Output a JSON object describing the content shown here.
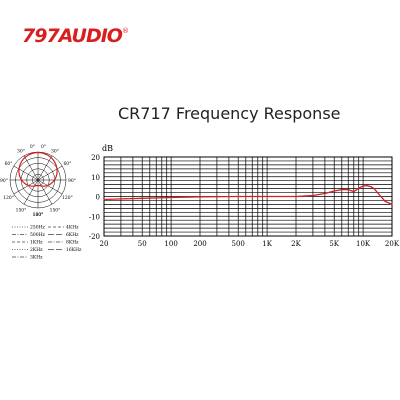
{
  "brand": {
    "name": "797AUDIO",
    "registered_mark": "®",
    "color": "#d81e1e"
  },
  "page_title": "CR717 Frequency Response",
  "polar_pattern": {
    "angle_labels": [
      "0°",
      "0°",
      "30°",
      "30°",
      "60°",
      "60°",
      "90°",
      "90°",
      "120°",
      "120°",
      "150°",
      "150°",
      "180°",
      "180°"
    ],
    "legend": [
      {
        "label": "250Hz",
        "style": "dotted"
      },
      {
        "label": "4KHz",
        "style": "dashed"
      },
      {
        "label": "500Hz",
        "style": "dash-dot"
      },
      {
        "label": "6KHz",
        "style": "long-dash"
      },
      {
        "label": "1KHz",
        "style": "dashed"
      },
      {
        "label": "8KHz",
        "style": "dash-dot"
      },
      {
        "label": "2KHz",
        "style": "dotted"
      },
      {
        "label": "16KHz",
        "style": "long-dash"
      },
      {
        "label": "3KHz",
        "style": "dash-dot"
      }
    ],
    "line_color": "#d81e1e"
  },
  "chart_data": {
    "type": "line",
    "ylabel": "dB",
    "x_scale": "log",
    "xlim": [
      20,
      20000
    ],
    "ylim": [
      -20,
      20
    ],
    "x_ticks": [
      20,
      50,
      100,
      200,
      500,
      1000,
      2000,
      5000,
      10000,
      20000
    ],
    "x_tick_labels": [
      "20",
      "50",
      "100",
      "200",
      "500",
      "1K",
      "2K",
      "5K",
      "10K",
      "20K"
    ],
    "y_ticks": [
      20,
      10,
      0,
      -10,
      -20
    ],
    "y_tick_labels": [
      "20",
      "10",
      "0",
      "-10",
      "-20"
    ],
    "grid": true,
    "line_color": "#d81e1e",
    "series": [
      {
        "x": [
          20,
          30,
          50,
          100,
          200,
          500,
          1000,
          2000,
          3000,
          4000,
          5000,
          6000,
          7000,
          8000,
          9000,
          10000,
          11000,
          12000,
          13000,
          15000,
          17000,
          20000
        ],
        "y": [
          -1.5,
          -1.2,
          -0.9,
          -0.5,
          -0.2,
          0,
          0,
          0,
          0.5,
          1.5,
          2.8,
          3.5,
          3.5,
          2.5,
          4.2,
          5.3,
          5.5,
          5.0,
          4.0,
          0.5,
          -2.5,
          -4.0
        ]
      }
    ]
  }
}
